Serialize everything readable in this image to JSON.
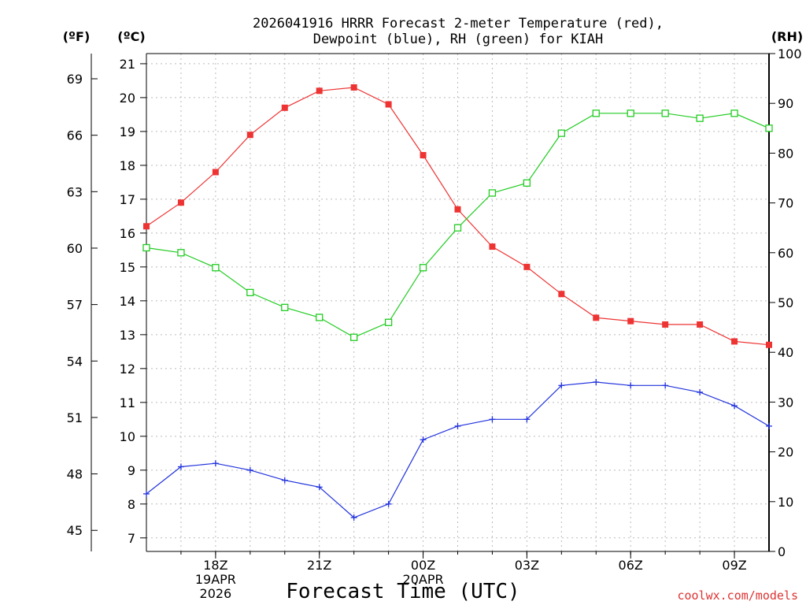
{
  "chart_data": {
    "type": "line",
    "title_line1": "2026041916 HRRR Forecast 2-meter Temperature (red),",
    "title_line2": "Dewpoint (blue), RH (green) for KIAH",
    "xlabel": "Forecast Time (UTC)",
    "credit": "coolwx.com/models",
    "left_outer_unit": "(ºF)",
    "left_inner_unit": "(ºC)",
    "right_unit": "(RH)",
    "c_ylim": [
      6.6,
      21.3
    ],
    "rh_ylim": [
      0,
      100
    ],
    "c_ticks": [
      "7",
      "8",
      "9",
      "10",
      "11",
      "12",
      "13",
      "14",
      "15",
      "16",
      "17",
      "18",
      "19",
      "20",
      "21"
    ],
    "f_ticks": [
      "45",
      "48",
      "51",
      "54",
      "57",
      "60",
      "63",
      "66",
      "69"
    ],
    "rh_ticks": [
      "0",
      "10",
      "20",
      "30",
      "40",
      "50",
      "60",
      "70",
      "80",
      "90",
      "100"
    ],
    "x_range": [
      0,
      18
    ],
    "x_ticks": [
      {
        "x": 2,
        "label": "18Z",
        "sub1": "19APR",
        "sub2": "2026"
      },
      {
        "x": 5,
        "label": "21Z",
        "sub1": "",
        "sub2": ""
      },
      {
        "x": 8,
        "label": "00Z",
        "sub1": "20APR",
        "sub2": ""
      },
      {
        "x": 11,
        "label": "03Z",
        "sub1": "",
        "sub2": ""
      },
      {
        "x": 14,
        "label": "06Z",
        "sub1": "",
        "sub2": ""
      },
      {
        "x": 17,
        "label": "09Z",
        "sub1": "",
        "sub2": ""
      }
    ],
    "series": [
      {
        "name": "Temperature",
        "color": "#ee3333",
        "marker": "filled-square",
        "values": [
          16.2,
          16.9,
          17.8,
          18.9,
          19.7,
          20.2,
          20.3,
          19.8,
          18.3,
          16.7,
          15.6,
          15.0,
          14.2,
          13.5,
          13.4,
          13.3,
          13.3,
          12.8,
          12.7
        ]
      },
      {
        "name": "Dewpoint",
        "color": "#2233dd",
        "marker": "plus",
        "values": [
          8.3,
          9.1,
          9.2,
          9.0,
          8.7,
          8.5,
          7.6,
          8.0,
          9.9,
          10.3,
          10.5,
          10.5,
          11.5,
          11.6,
          11.5,
          11.5,
          11.3,
          10.9,
          10.3
        ]
      },
      {
        "name": "RH",
        "color": "#22cc22",
        "marker": "open-square",
        "values": [
          61,
          60,
          57,
          52,
          49,
          47,
          43,
          46,
          57,
          65,
          72,
          74,
          84,
          88,
          88,
          88,
          87,
          88,
          85
        ]
      }
    ]
  }
}
